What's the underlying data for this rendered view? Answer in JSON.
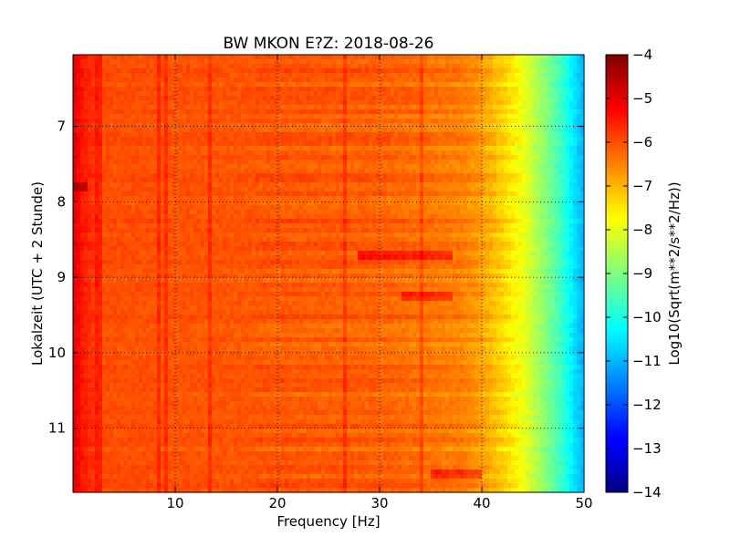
{
  "chart_data": {
    "type": "heatmap",
    "title": "BW MKON E?Z: 2018-08-26",
    "xlabel": "Frequency [Hz]",
    "ylabel": "Lokalzeit (UTC + 2 Stunde)",
    "colorbar_label": "Log10(Sqrt(m**2/s**2/Hz))",
    "xlim": [
      0,
      50
    ],
    "ylim": [
      11.85,
      6.05
    ],
    "clim": [
      -14,
      -4
    ],
    "colormap": "jet",
    "x_ticks": [
      10,
      20,
      30,
      40,
      50
    ],
    "y_ticks": [
      7,
      8,
      9,
      10,
      11
    ],
    "colorbar_ticks": [
      -4,
      -5,
      -6,
      -7,
      -8,
      -9,
      -10,
      -11,
      -12,
      -13,
      -14
    ],
    "grid": true,
    "frequency_profile": {
      "freq_hz": [
        0,
        1,
        3,
        10,
        20,
        30,
        38,
        40,
        42,
        44,
        46,
        48,
        49,
        50
      ],
      "log_amplitude": [
        -5.0,
        -5.5,
        -6.0,
        -6.05,
        -6.1,
        -6.2,
        -6.5,
        -6.8,
        -7.3,
        -7.9,
        -8.8,
        -9.8,
        -10.5,
        -11.0
      ]
    },
    "spectral_lines_hz": [
      2.5,
      8.3,
      9.0,
      13.5,
      26.5,
      34.2
    ],
    "bright_events": [
      {
        "time": 8.7,
        "freq_range": [
          28,
          37
        ],
        "log_amplitude_offset": 0.8
      },
      {
        "time": 9.27,
        "freq_range": [
          32,
          37
        ],
        "log_amplitude_offset": 0.7
      },
      {
        "time": 11.6,
        "freq_range": [
          35,
          40
        ],
        "log_amplitude_offset": 0.8
      },
      {
        "time": 7.8,
        "freq_range": [
          0,
          1.5
        ],
        "log_amplitude_offset": 0.8
      }
    ]
  }
}
